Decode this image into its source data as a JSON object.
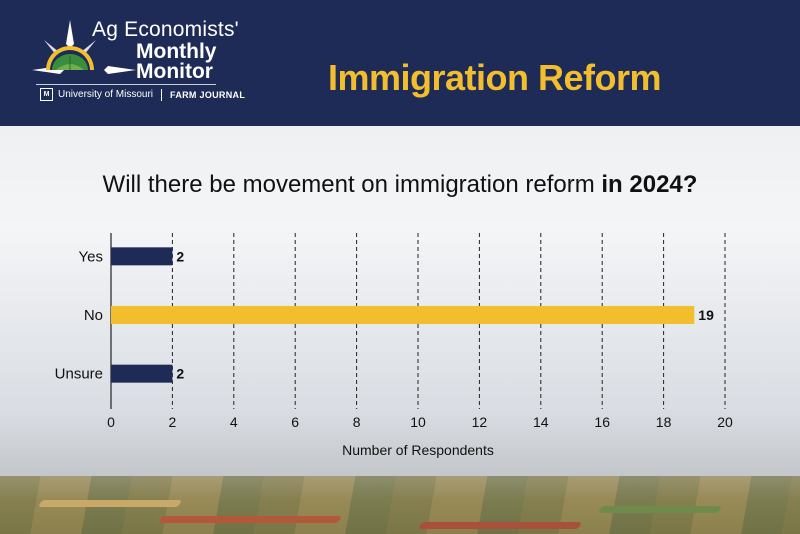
{
  "header": {
    "logo_line1": "Ag Economists'",
    "logo_line2": "Monthly",
    "logo_line3": "Monitor",
    "partner1": "University of Missouri",
    "partner2": "FARM JOURNAL",
    "title": "Immigration Reform",
    "icons": [
      "compass-star-icon",
      "mizzou-icon"
    ]
  },
  "colors": {
    "header_bg": "#1d2b56",
    "title": "#f2be2d",
    "bar_navy": "#1d2b56",
    "bar_gold": "#f2be2d"
  },
  "chart_data": {
    "type": "bar",
    "orientation": "horizontal",
    "title_plain": "Will there be movement on immigration reform ",
    "title_bold": "in 2024?",
    "categories": [
      "Yes",
      "No",
      "Unsure"
    ],
    "values": [
      2,
      19,
      2
    ],
    "bar_colors": [
      "#1d2b56",
      "#f2be2d",
      "#1d2b56"
    ],
    "xlabel": "Number of Respondents",
    "ylabel": "",
    "xlim": [
      0,
      20
    ],
    "xticks": [
      0,
      2,
      4,
      6,
      8,
      10,
      12,
      14,
      16,
      18,
      20
    ],
    "grid": "vertical dashed",
    "data_labels": true
  }
}
